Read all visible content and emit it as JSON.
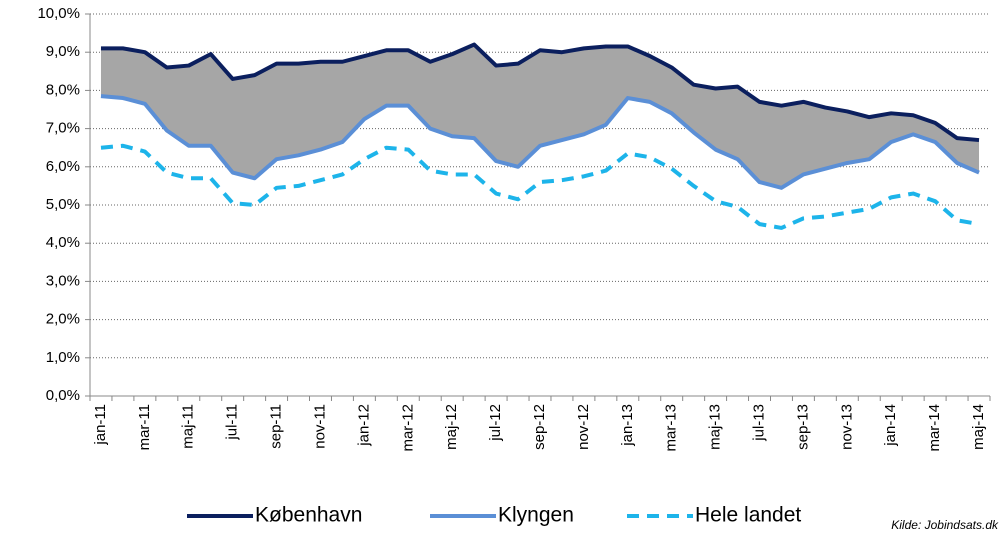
{
  "chart_data": {
    "type": "line",
    "categories": [
      "jan-11",
      null,
      "mar-11",
      null,
      "maj-11",
      null,
      "jul-11",
      null,
      "sep-11",
      null,
      "nov-11",
      null,
      "jan-12",
      null,
      "mar-12",
      null,
      "maj-12",
      null,
      "jul-12",
      null,
      "sep-12",
      null,
      "nov-12",
      null,
      "jan-13",
      null,
      "mar-13",
      null,
      "maj-13",
      null,
      "jul-13",
      null,
      "sep-13",
      null,
      "nov-13",
      null,
      "jan-14",
      null,
      "mar-14",
      null,
      "maj-14"
    ],
    "series": [
      {
        "name": "København",
        "color": "#0b1f5e",
        "dashed": false,
        "values": [
          9.1,
          9.1,
          9.0,
          8.6,
          8.65,
          8.95,
          8.3,
          8.4,
          8.7,
          8.7,
          8.75,
          8.75,
          8.9,
          9.05,
          9.05,
          8.75,
          8.95,
          9.2,
          8.65,
          8.7,
          9.05,
          9.0,
          9.1,
          9.15,
          9.15,
          8.9,
          8.6,
          8.15,
          8.05,
          8.1,
          7.7,
          7.6,
          7.7,
          7.55,
          7.45,
          7.3,
          7.4,
          7.35,
          7.15,
          6.75,
          6.7
        ]
      },
      {
        "name": "Klyngen",
        "color": "#5b8fd6",
        "dashed": false,
        "values": [
          7.85,
          7.8,
          7.65,
          6.95,
          6.55,
          6.55,
          5.85,
          5.7,
          6.2,
          6.3,
          6.45,
          6.65,
          7.25,
          7.6,
          7.6,
          7.0,
          6.8,
          6.75,
          6.15,
          6.0,
          6.55,
          6.7,
          6.85,
          7.1,
          7.8,
          7.7,
          7.4,
          6.9,
          6.45,
          6.2,
          5.6,
          5.45,
          5.8,
          5.95,
          6.1,
          6.2,
          6.65,
          6.85,
          6.65,
          6.1,
          5.85
        ]
      },
      {
        "name": "Hele landet",
        "color": "#1db4ea",
        "dashed": true,
        "values": [
          6.5,
          6.55,
          6.4,
          5.85,
          5.7,
          5.7,
          5.05,
          5.0,
          5.45,
          5.5,
          5.65,
          5.8,
          6.2,
          6.5,
          6.45,
          5.9,
          5.8,
          5.8,
          5.3,
          5.15,
          5.6,
          5.65,
          5.75,
          5.9,
          6.35,
          6.25,
          5.95,
          5.5,
          5.1,
          4.95,
          4.5,
          4.4,
          4.65,
          4.7,
          4.8,
          4.9,
          5.2,
          5.3,
          5.1,
          4.6,
          4.5
        ]
      }
    ],
    "ylim": [
      0,
      10
    ],
    "yticks": [
      {
        "value": 0,
        "label": "0,0%"
      },
      {
        "value": 1,
        "label": "1,0%"
      },
      {
        "value": 2,
        "label": "2,0%"
      },
      {
        "value": 3,
        "label": "3,0%"
      },
      {
        "value": 4,
        "label": "4,0%"
      },
      {
        "value": 5,
        "label": "5,0%"
      },
      {
        "value": 6,
        "label": "6,0%"
      },
      {
        "value": 7,
        "label": "7,0%"
      },
      {
        "value": 8,
        "label": "8,0%"
      },
      {
        "value": 9,
        "label": "9,0%"
      },
      {
        "value": 10,
        "label": "10,0%"
      }
    ],
    "grid": true,
    "fill_between_color": "#a6a6a6",
    "source": "Kilde: Jobindsats.dk"
  }
}
